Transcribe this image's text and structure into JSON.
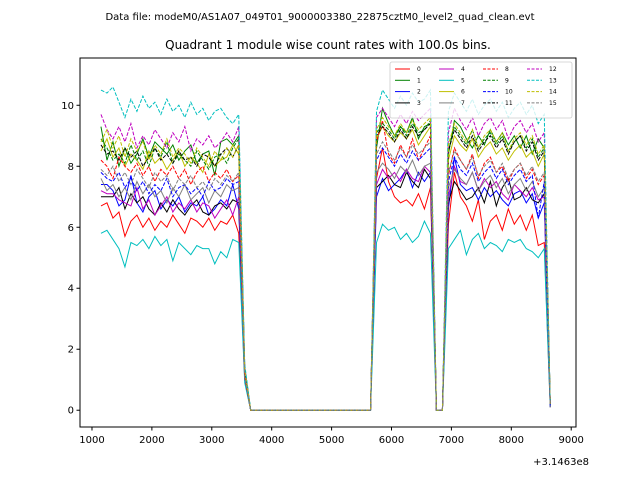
{
  "chart_data": {
    "type": "line",
    "suptitle": "Data file: modeM0/AS1A07_049T01_9000003380_22875cztM0_level2_quad_clean.evt",
    "title": "Quadrant 1 module wise count rates with 100.0s bins.",
    "xlabel": "",
    "ylabel": "",
    "x_offset_label": "+3.1463e8",
    "xlim": [
      800,
      9080
    ],
    "ylim": [
      -0.55,
      11.55
    ],
    "xticks": [
      1000,
      2000,
      3000,
      4000,
      5000,
      6000,
      7000,
      8000,
      9000
    ],
    "xtick_labels": [
      "1000",
      "2000",
      "3000",
      "4000",
      "5000",
      "6000",
      "7000",
      "8000",
      "9000"
    ],
    "yticks": [
      0,
      2,
      4,
      6,
      8,
      10
    ],
    "ytick_labels": [
      "0",
      "2",
      "4",
      "6",
      "8",
      "10"
    ],
    "grid": false,
    "legend_position": "upper right",
    "x": [
      1150,
      1250,
      1350,
      1450,
      1550,
      1650,
      1750,
      1850,
      1950,
      2050,
      2150,
      2250,
      2350,
      2450,
      2550,
      2650,
      2750,
      2850,
      2950,
      3050,
      3150,
      3250,
      3350,
      3450,
      3550,
      3650,
      5650,
      5750,
      5850,
      5950,
      6050,
      6150,
      6250,
      6350,
      6450,
      6550,
      6650,
      6750,
      6850,
      6950,
      7050,
      7150,
      7250,
      7350,
      7450,
      7550,
      7650,
      7750,
      7850,
      7950,
      8050,
      8150,
      8250,
      8350,
      8450,
      8550,
      8650
    ],
    "series": [
      {
        "name": "0",
        "color": "#ff0000",
        "dash": "solid",
        "values": [
          6.7,
          6.8,
          6.3,
          6.5,
          5.7,
          6.2,
          6.4,
          6.0,
          6.3,
          5.9,
          6.2,
          6.0,
          6.4,
          6.1,
          5.8,
          6.3,
          6.2,
          6.0,
          6.3,
          5.9,
          6.2,
          6.1,
          6.4,
          5.8,
          1.0,
          0.0,
          0.0,
          7.6,
          8.6,
          7.5,
          7.0,
          6.8,
          6.9,
          6.7,
          7.1,
          6.6,
          7.3,
          0.0,
          0.0,
          6.1,
          7.8,
          7.0,
          6.7,
          6.2,
          6.9,
          5.6,
          6.2,
          6.4,
          5.9,
          6.6,
          6.1,
          6.4,
          5.9,
          6.4,
          5.4,
          5.5,
          0.1
        ]
      },
      {
        "name": "1",
        "color": "#008000",
        "dash": "solid",
        "values": [
          9.3,
          8.2,
          8.8,
          8.0,
          8.6,
          8.1,
          8.4,
          8.9,
          8.3,
          8.8,
          8.6,
          8.4,
          8.7,
          8.2,
          8.5,
          8.7,
          8.1,
          8.4,
          8.5,
          7.7,
          8.8,
          8.9,
          8.7,
          9.0,
          1.4,
          0.0,
          0.0,
          8.6,
          9.9,
          9.4,
          9.0,
          9.3,
          9.1,
          9.6,
          8.9,
          9.3,
          9.4,
          0.0,
          0.0,
          8.4,
          9.5,
          9.3,
          8.9,
          8.6,
          9.0,
          8.7,
          9.2,
          8.8,
          9.1,
          8.7,
          9.0,
          8.6,
          9.0,
          8.4,
          8.9,
          8.6,
          0.2
        ]
      },
      {
        "name": "2",
        "color": "#0000ff",
        "dash": "solid",
        "values": [
          7.4,
          7.4,
          7.2,
          6.7,
          6.9,
          7.7,
          6.8,
          6.5,
          7.0,
          7.2,
          6.6,
          6.9,
          6.7,
          7.0,
          6.5,
          6.8,
          6.7,
          7.0,
          6.4,
          6.6,
          6.9,
          6.7,
          7.4,
          6.6,
          1.1,
          0.0,
          0.0,
          7.0,
          7.6,
          7.2,
          7.4,
          7.6,
          7.9,
          7.3,
          7.8,
          7.5,
          7.8,
          0.0,
          0.0,
          6.6,
          8.3,
          7.4,
          7.2,
          7.3,
          6.9,
          7.3,
          7.0,
          7.2,
          6.9,
          6.7,
          7.1,
          7.2,
          6.8,
          7.1,
          6.3,
          6.8,
          0.1
        ]
      },
      {
        "name": "3",
        "color": "#000000",
        "dash": "solid",
        "values": [
          7.0,
          7.0,
          7.0,
          7.3,
          6.6,
          7.1,
          6.8,
          7.0,
          6.6,
          6.4,
          6.8,
          6.5,
          6.9,
          6.6,
          6.4,
          6.7,
          6.9,
          6.5,
          6.4,
          6.7,
          6.8,
          6.6,
          6.9,
          6.8,
          1.1,
          0.0,
          0.0,
          7.3,
          7.5,
          7.7,
          7.4,
          7.3,
          7.8,
          7.5,
          7.3,
          7.9,
          7.6,
          0.0,
          0.0,
          6.8,
          7.5,
          7.2,
          6.9,
          7.0,
          7.3,
          6.8,
          7.5,
          6.7,
          7.3,
          7.6,
          6.9,
          7.0,
          7.3,
          6.9,
          6.8,
          7.1,
          0.2
        ]
      },
      {
        "name": "4",
        "color": "#bf00bf",
        "dash": "solid",
        "values": [
          7.2,
          7.1,
          7.1,
          6.9,
          6.8,
          6.7,
          7.3,
          6.6,
          6.9,
          6.4,
          6.7,
          7.0,
          6.5,
          6.8,
          6.6,
          6.9,
          6.5,
          6.8,
          6.7,
          6.3,
          6.6,
          6.9,
          6.4,
          7.0,
          1.0,
          0.0,
          0.0,
          7.4,
          7.9,
          7.6,
          7.8,
          7.5,
          7.9,
          7.6,
          7.5,
          8.0,
          7.8,
          0.0,
          0.0,
          7.0,
          8.0,
          7.5,
          7.4,
          7.8,
          7.2,
          7.6,
          7.3,
          7.5,
          7.1,
          6.9,
          7.4,
          7.2,
          7.0,
          7.3,
          6.9,
          7.0,
          0.2
        ]
      },
      {
        "name": "5",
        "color": "#00bfbf",
        "dash": "solid",
        "values": [
          5.8,
          5.9,
          5.6,
          5.3,
          4.7,
          5.5,
          5.4,
          5.6,
          5.3,
          5.7,
          5.4,
          5.6,
          4.9,
          5.5,
          5.3,
          5.1,
          5.4,
          5.3,
          5.3,
          4.8,
          5.2,
          5.0,
          5.6,
          5.5,
          0.9,
          0.0,
          0.0,
          5.5,
          6.1,
          5.9,
          6.0,
          5.6,
          5.8,
          5.5,
          5.7,
          6.2,
          5.8,
          0.0,
          0.0,
          5.3,
          5.6,
          5.9,
          5.1,
          5.6,
          5.8,
          5.3,
          5.5,
          5.4,
          5.2,
          5.6,
          5.5,
          5.6,
          5.3,
          5.2,
          5.0,
          5.3,
          0.1
        ]
      },
      {
        "name": "6",
        "color": "#bfbf00",
        "dash": "solid",
        "values": [
          8.5,
          8.9,
          8.3,
          8.6,
          8.0,
          8.4,
          8.2,
          7.9,
          8.5,
          8.1,
          8.3,
          7.9,
          8.2,
          8.5,
          8.0,
          8.3,
          8.1,
          7.8,
          8.4,
          8.0,
          8.2,
          8.3,
          8.7,
          8.4,
          1.2,
          0.0,
          0.0,
          8.9,
          9.3,
          9.0,
          8.8,
          9.1,
          8.9,
          9.2,
          8.7,
          9.0,
          9.3,
          0.0,
          0.0,
          8.2,
          9.0,
          8.7,
          8.5,
          8.9,
          8.3,
          8.6,
          8.8,
          8.4,
          8.6,
          8.2,
          8.5,
          8.7,
          8.3,
          8.5,
          8.0,
          8.4,
          0.2
        ]
      },
      {
        "name": "7",
        "color": "#808080",
        "dash": "solid",
        "values": [
          7.6,
          7.2,
          7.4,
          7.0,
          7.3,
          6.9,
          7.5,
          7.1,
          7.4,
          7.0,
          7.2,
          6.8,
          7.3,
          7.0,
          7.4,
          6.9,
          7.1,
          7.3,
          6.8,
          7.2,
          7.0,
          7.4,
          7.2,
          7.3,
          1.1,
          0.0,
          0.0,
          7.8,
          8.1,
          7.9,
          7.6,
          8.0,
          7.8,
          8.2,
          7.7,
          8.0,
          8.1,
          0.0,
          0.0,
          7.3,
          7.9,
          7.6,
          7.4,
          7.8,
          7.2,
          7.5,
          7.7,
          7.3,
          7.6,
          7.1,
          7.4,
          7.6,
          7.2,
          7.5,
          7.0,
          7.3,
          0.1
        ]
      },
      {
        "name": "8",
        "color": "#ff0000",
        "dash": "dashed",
        "values": [
          8.2,
          8.0,
          7.6,
          8.3,
          8.0,
          7.8,
          8.1,
          7.7,
          8.0,
          7.5,
          7.9,
          7.7,
          8.0,
          7.6,
          7.9,
          7.4,
          7.8,
          8.0,
          7.5,
          7.8,
          7.6,
          7.9,
          7.5,
          7.7,
          1.1,
          0.0,
          0.0,
          8.8,
          9.5,
          8.4,
          8.1,
          8.7,
          8.3,
          8.9,
          8.2,
          8.6,
          9.0,
          0.0,
          0.0,
          7.7,
          8.6,
          8.2,
          7.9,
          8.4,
          7.6,
          8.1,
          8.3,
          7.8,
          8.0,
          7.5,
          7.9,
          8.1,
          7.6,
          7.9,
          7.4,
          7.7,
          0.2
        ]
      },
      {
        "name": "9",
        "color": "#008000",
        "dash": "dashed",
        "values": [
          8.9,
          8.6,
          8.2,
          8.4,
          8.1,
          8.7,
          8.2,
          8.5,
          8.0,
          8.6,
          8.3,
          8.8,
          8.1,
          8.4,
          8.2,
          8.0,
          8.5,
          8.2,
          7.9,
          8.3,
          8.4,
          8.1,
          8.6,
          8.9,
          1.3,
          0.0,
          0.0,
          9.1,
          9.4,
          9.2,
          8.9,
          9.3,
          9.0,
          9.4,
          9.1,
          9.2,
          9.5,
          0.0,
          0.0,
          8.5,
          9.3,
          9.0,
          8.7,
          9.2,
          8.6,
          8.9,
          9.1,
          8.7,
          9.0,
          8.5,
          8.8,
          9.0,
          8.6,
          8.9,
          8.3,
          8.6,
          0.2
        ]
      },
      {
        "name": "10",
        "color": "#0000ff",
        "dash": "dashed",
        "values": [
          7.8,
          7.6,
          7.5,
          7.8,
          7.3,
          7.6,
          7.2,
          7.5,
          7.1,
          7.4,
          7.2,
          7.6,
          7.0,
          7.3,
          7.4,
          7.1,
          7.3,
          7.0,
          7.5,
          7.2,
          7.3,
          7.6,
          7.4,
          7.5,
          1.1,
          0.0,
          0.0,
          8.2,
          8.6,
          8.3,
          8.0,
          8.4,
          8.1,
          8.5,
          8.2,
          8.4,
          8.6,
          0.0,
          0.0,
          7.5,
          8.3,
          7.9,
          7.7,
          8.1,
          7.5,
          7.8,
          8.0,
          7.6,
          7.9,
          7.4,
          7.7,
          7.9,
          7.5,
          7.7,
          6.3,
          7.5,
          0.1
        ]
      },
      {
        "name": "11",
        "color": "#000000",
        "dash": "dashed",
        "values": [
          8.7,
          8.4,
          8.5,
          8.2,
          8.6,
          8.3,
          8.5,
          8.0,
          8.3,
          8.6,
          8.2,
          8.4,
          8.1,
          8.5,
          8.2,
          8.3,
          8.0,
          8.4,
          8.3,
          8.0,
          8.4,
          8.6,
          8.3,
          8.7,
          1.2,
          0.0,
          0.0,
          9.0,
          9.3,
          9.1,
          8.8,
          9.2,
          8.9,
          9.3,
          9.0,
          9.2,
          9.4,
          0.0,
          0.0,
          8.5,
          9.2,
          8.9,
          8.6,
          9.0,
          8.5,
          8.8,
          9.0,
          8.6,
          8.9,
          8.4,
          8.8,
          9.0,
          8.5,
          8.8,
          8.2,
          8.5,
          0.2
        ]
      },
      {
        "name": "12",
        "color": "#bf00bf",
        "dash": "dashed",
        "values": [
          9.7,
          9.2,
          8.9,
          9.3,
          8.8,
          9.4,
          8.6,
          9.0,
          8.7,
          9.2,
          8.9,
          8.6,
          9.1,
          8.8,
          9.3,
          8.5,
          8.9,
          8.7,
          9.0,
          8.6,
          8.8,
          9.1,
          8.8,
          9.3,
          1.4,
          0.0,
          0.0,
          9.6,
          9.9,
          9.6,
          9.3,
          9.7,
          9.4,
          9.8,
          9.5,
          9.7,
          9.9,
          0.0,
          0.0,
          9.1,
          9.9,
          9.5,
          9.2,
          9.6,
          9.0,
          9.4,
          9.6,
          9.2,
          9.5,
          8.9,
          9.3,
          9.5,
          9.1,
          9.4,
          8.8,
          9.1,
          0.2
        ]
      },
      {
        "name": "13",
        "color": "#00bfbf",
        "dash": "dashed",
        "values": [
          10.5,
          10.4,
          10.6,
          10.1,
          9.6,
          10.2,
          9.8,
          10.3,
          9.9,
          10.1,
          9.7,
          10.2,
          9.8,
          10.0,
          9.6,
          10.1,
          9.7,
          9.9,
          9.5,
          9.8,
          9.9,
          9.6,
          9.4,
          9.7,
          1.5,
          0.0,
          0.0,
          9.8,
          10.5,
          10.2,
          9.9,
          10.3,
          10.0,
          10.4,
          10.1,
          10.2,
          10.5,
          0.0,
          0.0,
          9.8,
          10.4,
          10.1,
          9.8,
          10.2,
          9.7,
          10.0,
          10.2,
          9.8,
          10.1,
          9.6,
          9.9,
          10.1,
          9.7,
          10.0,
          9.4,
          9.7,
          0.2
        ]
      },
      {
        "name": "14",
        "color": "#bfbf00",
        "dash": "dashed",
        "values": [
          8.8,
          9.2,
          8.6,
          9.0,
          8.3,
          8.9,
          8.5,
          8.8,
          8.2,
          8.7,
          8.4,
          8.9,
          8.3,
          8.6,
          8.4,
          8.1,
          8.6,
          8.3,
          8.0,
          8.5,
          8.2,
          8.6,
          8.3,
          8.7,
          1.3,
          0.0,
          0.0,
          9.2,
          9.6,
          9.3,
          9.0,
          9.4,
          9.1,
          9.5,
          9.2,
          9.4,
          9.6,
          0.0,
          0.0,
          8.7,
          9.4,
          9.1,
          8.8,
          9.2,
          8.6,
          9.0,
          9.2,
          8.8,
          9.1,
          8.5,
          8.9,
          9.1,
          8.7,
          9.0,
          8.4,
          8.7,
          0.2
        ]
      },
      {
        "name": "15",
        "color": "#808080",
        "dash": "dashed",
        "values": [
          7.9,
          7.7,
          8.0,
          7.5,
          7.8,
          7.4,
          7.9,
          7.6,
          7.3,
          7.8,
          7.5,
          7.7,
          7.2,
          7.6,
          7.4,
          7.7,
          7.3,
          7.5,
          7.2,
          7.6,
          7.4,
          7.7,
          7.5,
          7.8,
          1.1,
          0.0,
          0.0,
          8.4,
          8.8,
          8.5,
          8.2,
          8.6,
          8.3,
          8.7,
          8.4,
          8.6,
          8.8,
          0.0,
          0.0,
          7.8,
          8.5,
          8.2,
          7.9,
          8.3,
          7.7,
          8.0,
          8.2,
          7.8,
          8.1,
          7.6,
          7.9,
          8.1,
          7.7,
          8.0,
          7.5,
          7.8,
          0.1
        ]
      }
    ]
  }
}
